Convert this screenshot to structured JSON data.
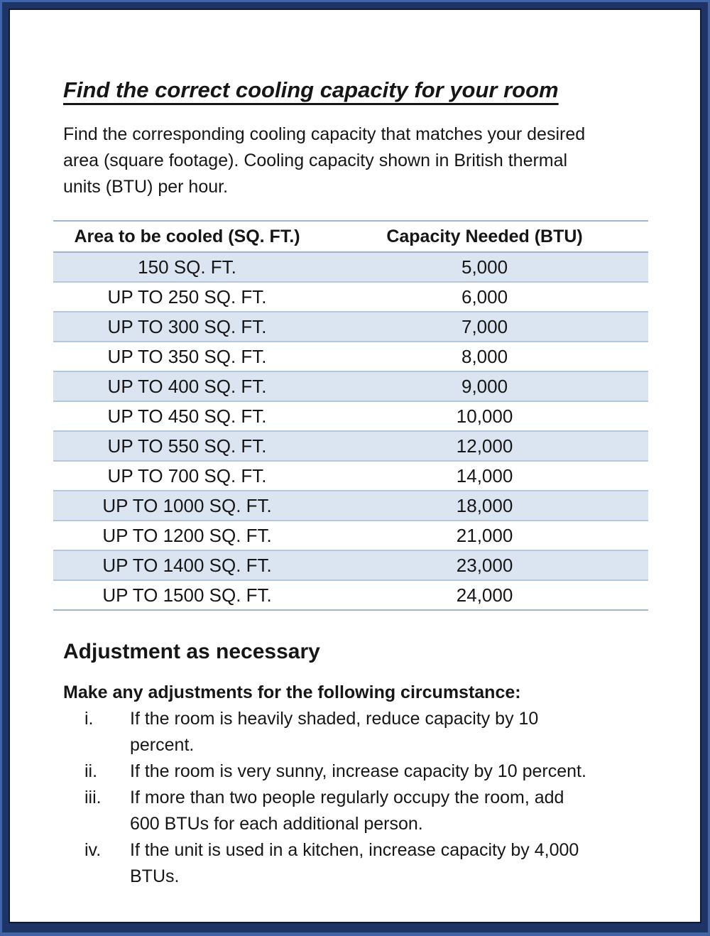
{
  "title": "Find the correct cooling capacity for your room",
  "intro_lines": [
    "Find the corresponding cooling capacity that matches your desired",
    "area (square footage). Cooling capacity shown in British thermal",
    "units (BTU) per hour."
  ],
  "table": {
    "headers": [
      "Area to be cooled (SQ. FT.)",
      "Capacity Needed (BTU)"
    ],
    "rows": [
      [
        "150 SQ. FT.",
        "5,000"
      ],
      [
        "UP TO 250 SQ. FT.",
        "6,000"
      ],
      [
        "UP TO 300 SQ. FT.",
        "7,000"
      ],
      [
        "UP TO 350 SQ. FT.",
        "8,000"
      ],
      [
        "UP TO 400 SQ. FT.",
        "9,000"
      ],
      [
        "UP TO 450 SQ. FT.",
        "10,000"
      ],
      [
        "UP TO 550 SQ. FT.",
        "12,000"
      ],
      [
        "UP TO 700 SQ. FT.",
        "14,000"
      ],
      [
        "UP TO 1000 SQ. FT.",
        "18,000"
      ],
      [
        "UP TO 1200 SQ. FT.",
        "21,000"
      ],
      [
        "UP TO 1400 SQ. FT.",
        "23,000"
      ],
      [
        "UP TO 1500 SQ. FT.",
        "24,000"
      ]
    ]
  },
  "adjustments": {
    "heading": "Adjustment as necessary",
    "lead": "Make any adjustments for the following circumstance:",
    "items": [
      {
        "num": "i.",
        "lines": [
          "If the room is heavily shaded, reduce capacity by 10",
          "percent."
        ]
      },
      {
        "num": "ii.",
        "lines": [
          "If the room is very sunny, increase capacity by 10 percent."
        ]
      },
      {
        "num": "iii.",
        "lines": [
          "If more than two people regularly occupy the room, add",
          "600 BTUs for each additional person."
        ]
      },
      {
        "num": "iv.",
        "lines": [
          "If the unit is used in a kitchen, increase capacity by 4,000",
          "BTUs."
        ]
      }
    ]
  },
  "colors": {
    "frame_outer": "#4164a8",
    "frame_main": "#1e3465",
    "frame_dark_line": "#0f1938",
    "row_blue": "#dbe5f1",
    "table_line": "#9fb6cf",
    "table_line_light": "#b3c8de"
  }
}
